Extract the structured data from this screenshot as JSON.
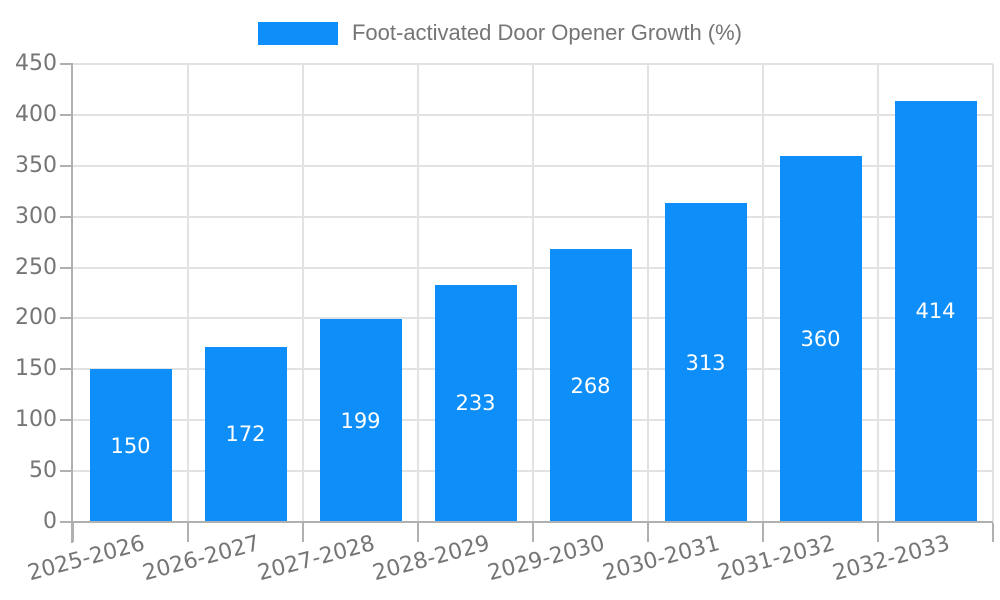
{
  "legend": {
    "label": "Foot-activated Door Opener Growth (%)"
  },
  "chart_data": {
    "type": "bar",
    "title": "Foot-activated Door Opener Growth (%)",
    "categories": [
      "2025-2026",
      "2026-2027",
      "2027-2028",
      "2028-2029",
      "2029-2030",
      "2030-2031",
      "2031-2032",
      "2032-2033"
    ],
    "values": [
      150,
      172,
      199,
      233,
      268,
      313,
      360,
      414
    ],
    "xlabel": "",
    "ylabel": "",
    "ylim": [
      0,
      450
    ],
    "ytick_step": 50,
    "ytick_labels": [
      "0",
      "50",
      "100",
      "150",
      "200",
      "250",
      "300",
      "350",
      "400",
      "450"
    ],
    "grid": true,
    "legend_position": "top",
    "series_color": "#0d8ef9",
    "bar_label_color": "#ffffff",
    "axis_label_color": "#757575"
  }
}
